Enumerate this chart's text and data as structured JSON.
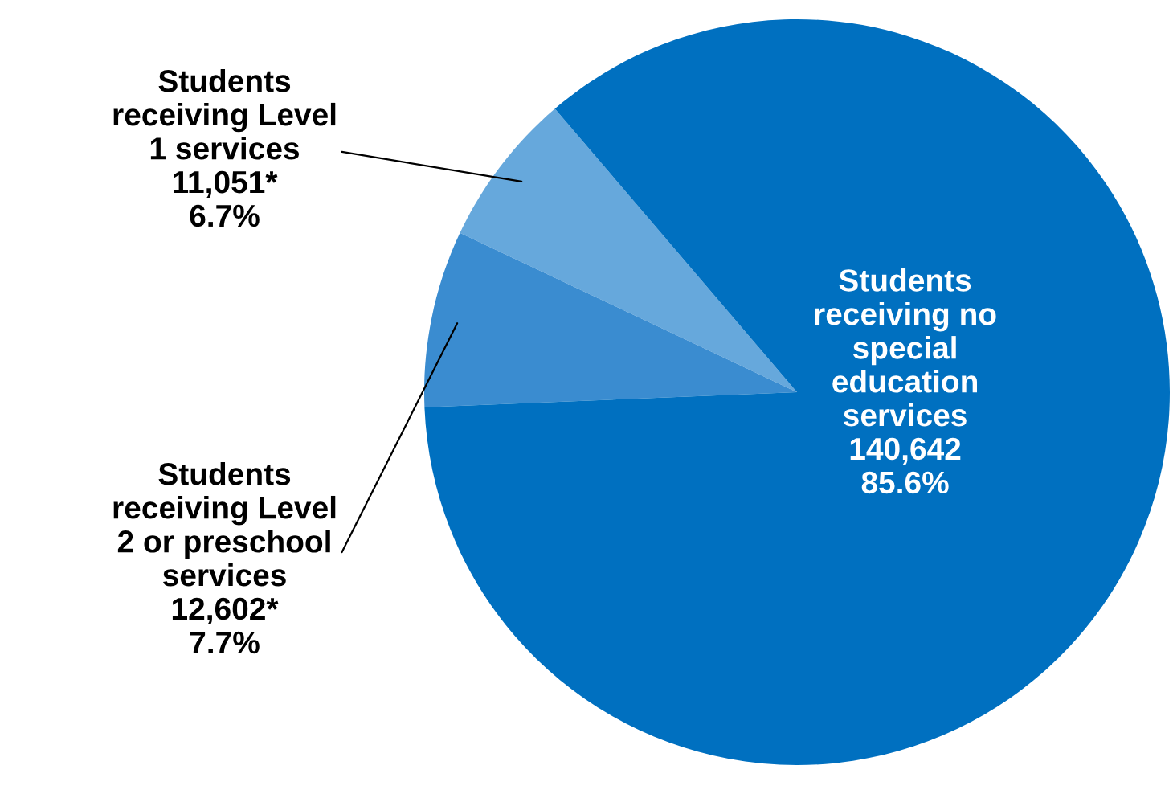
{
  "chart_data": {
    "type": "pie",
    "categories": [
      "Students\nreceiving Level\n1 services",
      "Students\nreceiving Level\n2 or preschool\nservices",
      "Students\nreceiving no\nspecial\neducation\nservices"
    ],
    "values": [
      11051,
      12602,
      140642
    ],
    "value_labels": [
      "11,051*\n6.7%",
      "12,602*\n7.7%",
      "140,642\n85.6%"
    ],
    "colors": [
      "#66a8dc",
      "#3a8cd0",
      "#0070c0"
    ],
    "legend": false
  }
}
